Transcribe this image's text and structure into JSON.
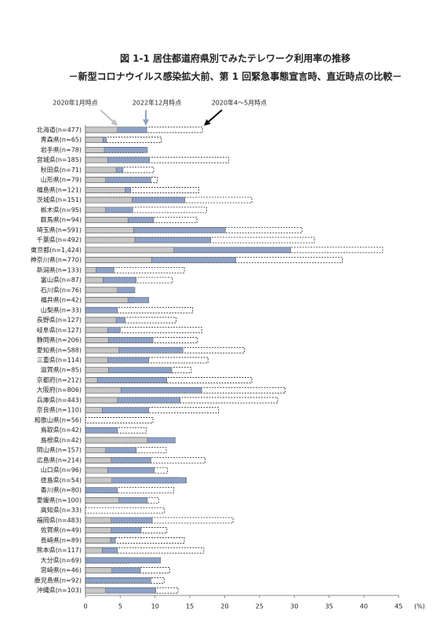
{
  "chart_data": {
    "type": "overlap-barh",
    "title": "図 1-1 居住都道府県別でみたテレワーク利用率の推移",
    "subtitle": "－新型コロナウイルス感染拡大前、第 1 回緊急事態宣言時、直近時点の比較－",
    "x_label": "(%)",
    "categories": [
      "北海道(n=477)",
      "青森県(n=65)",
      "岩手県(n=78)",
      "宮城県(n=185)",
      "秋田県(n=71)",
      "山形県(n=79)",
      "福島県(n=121)",
      "茨城県(n=151)",
      "栃木県(n=95)",
      "群馬県(n=94)",
      "埼玉県(n=591)",
      "千葉県(n=492)",
      "東京都(n=1,424)",
      "神奈川県(n=770)",
      "新潟県(n=133)",
      "富山県(n=87)",
      "石川県(n=76)",
      "福井県(n=42)",
      "山梨県(n=33)",
      "長野県(n=127)",
      "岐阜県(n=127)",
      "静岡県(n=206)",
      "愛知県(n=588)",
      "三重県(n=114)",
      "滋賀県(n=85)",
      "京都府(n=212)",
      "大阪府(n=806)",
      "兵庫県(n=443)",
      "奈良県(n=110)",
      "和歌山県(n=56)",
      "鳥取県(n=42)",
      "島根県(n=42)",
      "岡山県(n=157)",
      "広島県(n=214)",
      "山口県(n=96)",
      "徳島県(n=54)",
      "香川県(n=80)",
      "愛媛県(n=100)",
      "高知県(n=33)",
      "福岡県(n=483)",
      "佐賀県(n=49)",
      "長崎県(n=89)",
      "熊本県(n=117)",
      "大分県(n=69)",
      "宮崎県(n=46)",
      "鹿児島県(n=92)",
      "沖縄県(n=103)"
    ],
    "series": [
      {
        "name": "2020年1月時点",
        "color": "#c8c8c8",
        "arrow": "#c0c0c0",
        "values": [
          4.6,
          2.5,
          2.7,
          3.2,
          4.4,
          2.9,
          5.7,
          6.7,
          2.9,
          6.1,
          6.9,
          7.1,
          12.7,
          9.5,
          1.5,
          2.5,
          4.6,
          6.1,
          0,
          4.4,
          3.2,
          3.3,
          4.8,
          3.2,
          3.3,
          1.7,
          5.1,
          4.6,
          2.4,
          0,
          0,
          8.9,
          2.9,
          3.7,
          3.2,
          3.8,
          0,
          4.8,
          0,
          3.7,
          3.7,
          3.6,
          2.4,
          0,
          3.8,
          0,
          2.9
        ]
      },
      {
        "name": "2022年12月時点",
        "color": "#8ea2c8",
        "arrow": "#8ea2c8",
        "values": [
          8.8,
          3.0,
          8.9,
          9.2,
          5.4,
          9.4,
          6.5,
          14.3,
          6.8,
          9.8,
          20.1,
          18.0,
          29.5,
          21.6,
          4.1,
          7.3,
          7.1,
          9.1,
          4.6,
          5.7,
          5.0,
          9.7,
          14.0,
          9.1,
          12.4,
          11.7,
          16.7,
          13.6,
          9.1,
          0,
          4.6,
          12.9,
          7.3,
          9.4,
          9.9,
          14.5,
          4.6,
          8.9,
          0,
          9.6,
          8.0,
          4.3,
          4.6,
          10.8,
          7.9,
          9.4,
          10.1
        ]
      },
      {
        "name": "2020年4～5月時点",
        "color": "#ffffff",
        "arrow": "#000000",
        "dashed": true,
        "values": [
          16.8,
          10.9,
          8.3,
          20.6,
          9.8,
          10.3,
          16.3,
          23.9,
          17.4,
          16.0,
          31.1,
          32.9,
          42.7,
          36.9,
          14.2,
          12.5,
          6.8,
          7.0,
          15.4,
          13.0,
          16.7,
          16.1,
          22.8,
          17.6,
          15.2,
          23.9,
          28.7,
          27.6,
          19.1,
          9.7,
          8.7,
          8.0,
          11.6,
          17.2,
          11.8,
          13.3,
          12.7,
          10.5,
          11.3,
          21.2,
          11.7,
          14.2,
          17.0,
          6.3,
          12.1,
          11.3,
          13.3
        ]
      }
    ],
    "xlim": [
      0,
      48
    ],
    "xticks": [
      0,
      5,
      10,
      15,
      20,
      25,
      30,
      35,
      40,
      45
    ]
  }
}
